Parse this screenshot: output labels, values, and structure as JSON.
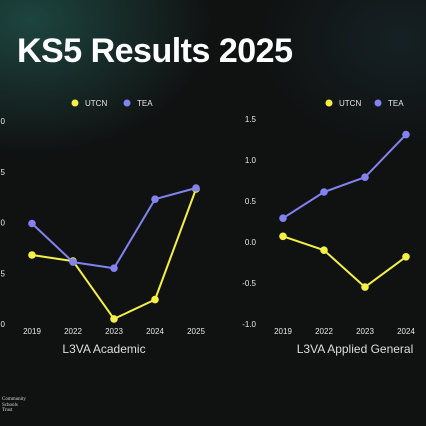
{
  "title": "KS5 Results 2025",
  "logo": {
    "line1": "Community",
    "line2": "Schools",
    "line3": "Trust"
  },
  "colors": {
    "utcn": "#f4f046",
    "tea": "#8283f0",
    "axis_text": "#e6e6e6",
    "grid": "#555555",
    "caption": "#dddddd"
  },
  "chart_data": [
    {
      "type": "line",
      "title": "L3VA Academic",
      "categories": [
        "2019",
        "2022",
        "2023",
        "2024",
        "2025"
      ],
      "yticks": [
        "0",
        "5",
        "0",
        "5",
        ".0"
      ],
      "ylim": [
        -0.5,
        1.5
      ],
      "legend": "top",
      "series": [
        {
          "name": "UTCN",
          "values": [
            0.18,
            0.12,
            -0.45,
            -0.26,
            0.83
          ]
        },
        {
          "name": "TEA",
          "values": [
            0.49,
            0.11,
            0.05,
            0.73,
            0.84
          ]
        }
      ]
    },
    {
      "type": "line",
      "title": "L3VA Applied General",
      "categories": [
        "2019",
        "2022",
        "2023",
        "2024"
      ],
      "yticks": [
        "1.5",
        "1.0",
        "0.5",
        "0.0",
        "-0.5",
        "-1.0"
      ],
      "ylim": [
        -1.0,
        1.5
      ],
      "legend": "top",
      "series": [
        {
          "name": "UTCN",
          "values": [
            0.07,
            -0.1,
            -0.55,
            -0.18
          ]
        },
        {
          "name": "TEA",
          "values": [
            0.29,
            0.61,
            0.79,
            1.31
          ]
        }
      ]
    }
  ]
}
